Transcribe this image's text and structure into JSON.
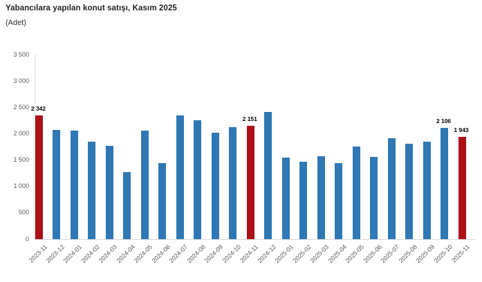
{
  "header": {
    "title": "Yabancılara yapılan konut satışı, Kasım 2025",
    "subtitle": "(Adet)"
  },
  "colors": {
    "bar_default": "#2e79b5",
    "bar_highlight": "#ad1116",
    "axis_line": "#d8d8d8",
    "tick_text": "#58595b",
    "value_label_text": "#000000"
  },
  "chart_data": {
    "type": "bar",
    "title": "Yabancılara yapılan konut satışı, Kasım 2025",
    "unit_label": "(Adet)",
    "categories": [
      "2023-11",
      "2023-12",
      "2024-01",
      "2024-02",
      "2024-03",
      "2024-04",
      "2024-05",
      "2024-06",
      "2024-07",
      "2024-08",
      "2024-09",
      "2024-10",
      "2024-11",
      "2024-12",
      "2025-01",
      "2025-02",
      "2025-03",
      "2025-04",
      "2025-05",
      "2025-06",
      "2025-07",
      "2025-08",
      "2025-09",
      "2025-10",
      "2025-11"
    ],
    "values": [
      2342,
      2066,
      2064,
      1845,
      1772,
      1274,
      2060,
      1439,
      2351,
      2254,
      2022,
      2128,
      2151,
      2410,
      1546,
      1464,
      1570,
      1448,
      1763,
      1563,
      1915,
      1808,
      1853,
      2106,
      1943
    ],
    "highlighted_categories": [
      "2023-11",
      "2024-11",
      "2025-11"
    ],
    "data_labels": {
      "2023-11": "2 342",
      "2024-11": "2 151",
      "2025-10": "2 106",
      "2025-11": "1 943"
    },
    "ylim": [
      0,
      3500
    ],
    "ytick_step": 500,
    "ytick_labels": [
      "0",
      "500",
      "1 000",
      "1 500",
      "2 000",
      "2 500",
      "3 000",
      "3 500"
    ],
    "xlabel": "",
    "ylabel": "",
    "grid": false,
    "legend": "none"
  }
}
